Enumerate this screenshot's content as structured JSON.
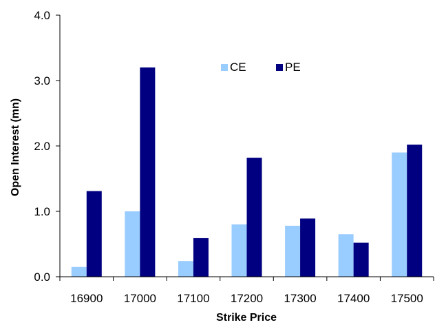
{
  "chart_data": {
    "type": "bar",
    "title": "",
    "xlabel": "Strike Price",
    "ylabel": "Open Interest (mn)",
    "categories": [
      "16900",
      "17000",
      "17100",
      "17200",
      "17300",
      "17400",
      "17500"
    ],
    "series": [
      {
        "name": "CE",
        "color": "#99ccff",
        "values": [
          0.15,
          1.0,
          0.24,
          0.8,
          0.78,
          0.65,
          1.9
        ]
      },
      {
        "name": "PE",
        "color": "#000080",
        "values": [
          1.31,
          3.2,
          0.59,
          1.82,
          0.89,
          0.52,
          2.02
        ]
      }
    ],
    "ylim": [
      0,
      4.0
    ],
    "yticks": [
      "0.0",
      "1.0",
      "2.0",
      "3.0",
      "4.0"
    ],
    "grid": false,
    "legend_position": "top-center"
  }
}
